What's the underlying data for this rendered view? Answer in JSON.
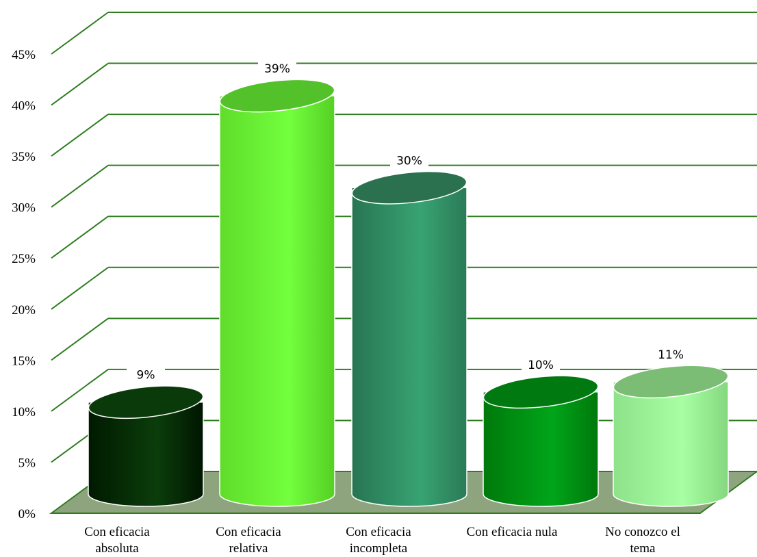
{
  "chart_data": {
    "type": "bar",
    "style": "3d-cylinder",
    "title": "",
    "xlabel": "",
    "ylabel": "",
    "ylim": [
      0,
      45
    ],
    "y_ticks": [
      "0%",
      "5%",
      "10%",
      "15%",
      "20%",
      "25%",
      "30%",
      "35%",
      "40%",
      "45%"
    ],
    "grid": true,
    "legend": "none",
    "categories": [
      [
        "Con eficacia",
        "absoluta"
      ],
      [
        "Con eficacia",
        "relativa"
      ],
      [
        "Con eficacia",
        "incompleta"
      ],
      [
        "Con eficacia nula"
      ],
      [
        "No conozco el",
        "tema"
      ]
    ],
    "values": [
      9,
      39,
      30,
      10,
      11
    ],
    "data_labels": [
      "9%",
      "39%",
      "30%",
      "10%",
      "11%"
    ],
    "colors": [
      {
        "left": "#001a00",
        "mid": "#0b3d0b",
        "right": "#001500",
        "top": "#0a3a0a"
      },
      {
        "left": "#5fdc2a",
        "mid": "#73ff3e",
        "right": "#55d024",
        "top": "#52c12a"
      },
      {
        "left": "#277552",
        "mid": "#38a373",
        "right": "#2a7a56",
        "top": "#2b7150"
      },
      {
        "left": "#00790a",
        "mid": "#00a51a",
        "right": "#00780b",
        "top": "#007a10"
      },
      {
        "left": "#8ee28a",
        "mid": "#a8ffa3",
        "right": "#85d77f",
        "top": "#7bbd74"
      }
    ],
    "grid_color": "#2e7d1f",
    "floor_color": "#8ea47e"
  }
}
